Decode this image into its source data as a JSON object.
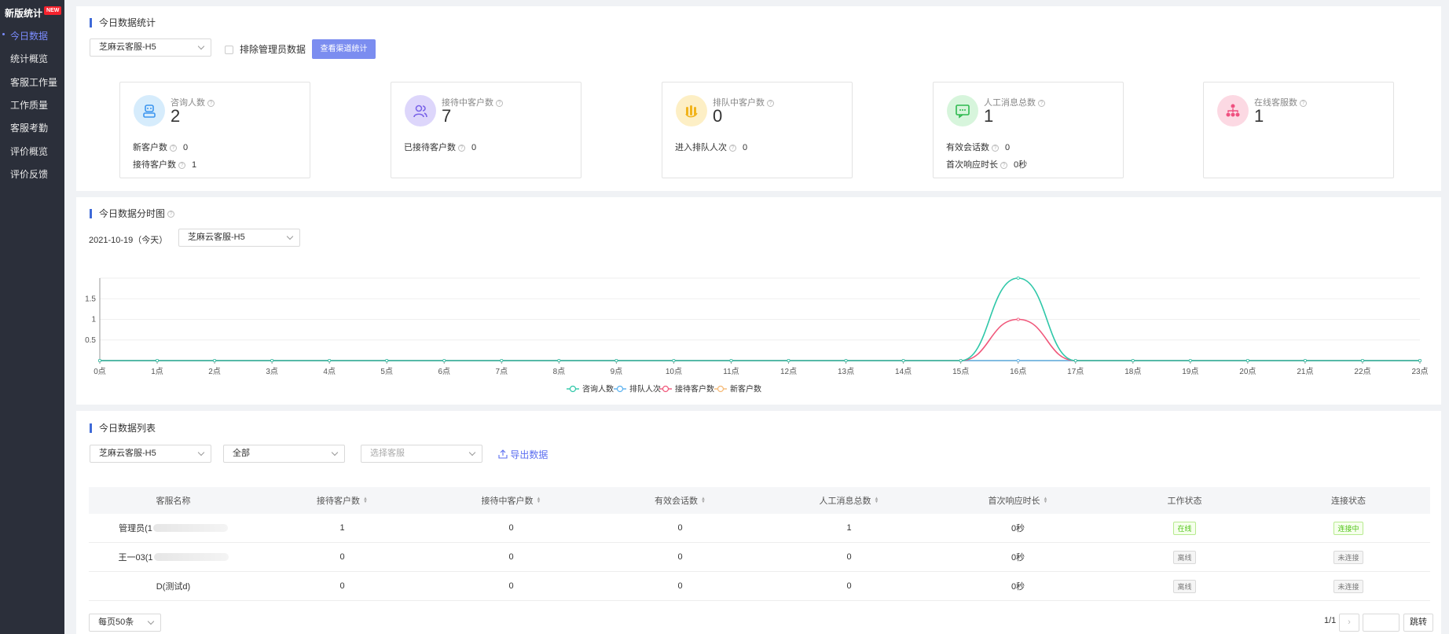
{
  "sidebar": {
    "title": "新版统计",
    "new_badge": "NEW",
    "items": [
      {
        "label": "今日数据",
        "active": true
      },
      {
        "label": "统计概览"
      },
      {
        "label": "客服工作量"
      },
      {
        "label": "工作质量"
      },
      {
        "label": "客服考勤"
      },
      {
        "label": "评价概览"
      },
      {
        "label": "评价反馈"
      }
    ]
  },
  "today_stats": {
    "title": "今日数据统计",
    "channel_select": "芝麻云客服-H5",
    "exclude_admin_label": "排除管理员数据",
    "view_channel_button": "查看渠道统计",
    "cards": [
      {
        "label": "咨询人数",
        "value": "2",
        "icon": "customer-service-icon",
        "icon_bg": "#d6ecfc",
        "icon_color": "#3b95ef",
        "subs": [
          {
            "label": "新客户数",
            "value": "0"
          },
          {
            "label": "接待客户数",
            "value": "1"
          }
        ]
      },
      {
        "label": "接待中客户数",
        "value": "7",
        "icon": "users-icon",
        "icon_bg": "#ddd6fb",
        "icon_color": "#7a63e8",
        "subs": [
          {
            "label": "已接待客户数",
            "value": "0"
          }
        ]
      },
      {
        "label": "排队中客户数",
        "value": "0",
        "icon": "queue-icon",
        "icon_bg": "#fdefc5",
        "icon_color": "#f1b31b",
        "subs": [
          {
            "label": "进入排队人次",
            "value": "0"
          }
        ]
      },
      {
        "label": "人工消息总数",
        "value": "1",
        "icon": "message-icon",
        "icon_bg": "#d7f5dc",
        "icon_color": "#2eb94e",
        "subs": [
          {
            "label": "有效会话数",
            "value": "0"
          },
          {
            "label": "首次响应时长",
            "value": "0秒"
          }
        ]
      },
      {
        "label": "在线客服数",
        "value": "1",
        "icon": "org-icon",
        "icon_bg": "#fcd9e3",
        "icon_color": "#ef5080",
        "subs": []
      }
    ]
  },
  "hourly": {
    "title": "今日数据分时图",
    "date": "2021-10-19（今天）",
    "channel_select": "芝麻云客服-H5"
  },
  "chart_data": {
    "type": "line",
    "x": [
      "0点",
      "1点",
      "2点",
      "3点",
      "4点",
      "5点",
      "6点",
      "7点",
      "8点",
      "9点",
      "10点",
      "11点",
      "12点",
      "13点",
      "14点",
      "15点",
      "16点",
      "17点",
      "18点",
      "19点",
      "20点",
      "21点",
      "22点",
      "23点"
    ],
    "y_ticks": [
      "0.5",
      "1",
      "1.5"
    ],
    "ylim": [
      0,
      2
    ],
    "grid": true,
    "legend_position": "bottom",
    "series": [
      {
        "name": "咨询人数",
        "color": "#2ec7a8",
        "values": [
          0,
          0,
          0,
          0,
          0,
          0,
          0,
          0,
          0,
          0,
          0,
          0,
          0,
          0,
          0,
          0,
          2,
          0,
          0,
          0,
          0,
          0,
          0,
          0
        ]
      },
      {
        "name": "排队人次",
        "color": "#5ab1ef",
        "values": [
          0,
          0,
          0,
          0,
          0,
          0,
          0,
          0,
          0,
          0,
          0,
          0,
          0,
          0,
          0,
          0,
          0,
          0,
          0,
          0,
          0,
          0,
          0,
          0
        ]
      },
      {
        "name": "接待客户数",
        "color": "#f0577a",
        "values": [
          0,
          0,
          0,
          0,
          0,
          0,
          0,
          0,
          0,
          0,
          0,
          0,
          0,
          0,
          0,
          0,
          1,
          0,
          0,
          0,
          0,
          0,
          0,
          0
        ]
      },
      {
        "name": "新客户数",
        "color": "#f5b874",
        "values": [
          0,
          0,
          0,
          0,
          0,
          0,
          0,
          0,
          0,
          0,
          0,
          0,
          0,
          0,
          0,
          0,
          0,
          0,
          0,
          0,
          0,
          0,
          0,
          0
        ]
      }
    ]
  },
  "table_section": {
    "title": "今日数据列表",
    "channel_select": "芝麻云客服-H5",
    "status_select": "全部",
    "agent_placeholder": "选择客服",
    "export_label": "导出数据",
    "columns": [
      "客服名称",
      "接待客户数",
      "接待中客户数",
      "有效会话数",
      "人工消息总数",
      "首次响应时长",
      "工作状态",
      "连接状态"
    ],
    "rows": [
      {
        "name": "管理员(1",
        "reception": "1",
        "receiving": "0",
        "sessions": "0",
        "messages": "1",
        "first_response": "0秒",
        "work_status": "在线",
        "conn_status": "连接中",
        "online": true
      },
      {
        "name": "王一03(1",
        "reception": "0",
        "receiving": "0",
        "sessions": "0",
        "messages": "0",
        "first_response": "0秒",
        "work_status": "离线",
        "conn_status": "未连接",
        "online": false
      },
      {
        "name": "D(测试d)",
        "reception": "0",
        "receiving": "0",
        "sessions": "0",
        "messages": "0",
        "first_response": "0秒",
        "work_status": "离线",
        "conn_status": "未连接",
        "online": false
      }
    ],
    "page_size": "每页50条",
    "page_info": "1/1",
    "jump_label": "跳转"
  }
}
